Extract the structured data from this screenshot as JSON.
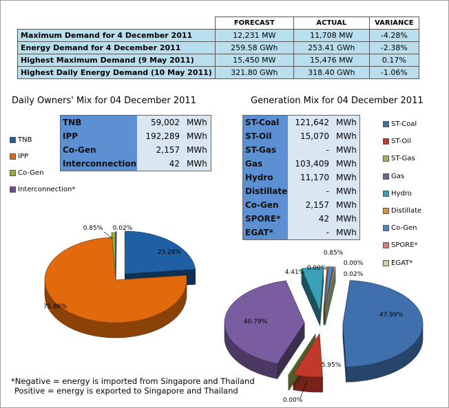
{
  "summary_table": {
    "headers": [
      "FORECAST",
      "ACTUAL",
      "VARIANCE"
    ],
    "rows": [
      {
        "label": "Maximum Demand for 4 December 2011",
        "forecast": "12,231  MW",
        "actual": "11,708  MW",
        "variance": "-4.28%"
      },
      {
        "label": "Energy Demand for 4 December 2011",
        "forecast": "259.58  GWh",
        "actual": "253.41  GWh",
        "variance": "-2.38%"
      },
      {
        "label": "Highest Maximum Demand (9 May 2011)",
        "forecast": "15,450  MW",
        "actual": "15,476  MW",
        "variance": "0.17%"
      },
      {
        "label": "Highest Daily Energy Demand (10 May 2011)",
        "forecast": "321.80  GWh",
        "actual": "318.40  GWh",
        "variance": "-1.06%"
      }
    ]
  },
  "owners_box": {
    "rows": [
      {
        "label": "TNB",
        "value": "59,002",
        "unit": "MWh"
      },
      {
        "label": "IPP",
        "value": "192,289",
        "unit": "MWh"
      },
      {
        "label": "Co-Gen",
        "value": "2,157",
        "unit": "MWh"
      },
      {
        "label": "Interconnection*",
        "value": "42",
        "unit": "MWh"
      }
    ]
  },
  "generation_box": {
    "rows": [
      {
        "label": "ST-Coal",
        "value": "121,642",
        "unit": "MWh"
      },
      {
        "label": "ST-Oil",
        "value": "15,070",
        "unit": "MWh"
      },
      {
        "label": "ST-Gas",
        "value": "-",
        "unit": "MWh"
      },
      {
        "label": "Gas",
        "value": "103,409",
        "unit": "MWh"
      },
      {
        "label": "Hydro",
        "value": "11,170",
        "unit": "MWh"
      },
      {
        "label": "Distillate",
        "value": "-",
        "unit": "MWh"
      },
      {
        "label": "Co-Gen",
        "value": "2,157",
        "unit": "MWh"
      },
      {
        "label": "SPORE*",
        "value": "42",
        "unit": "MWh"
      },
      {
        "label": "EGAT*",
        "value": "-",
        "unit": "MWh"
      }
    ]
  },
  "chart_data": [
    {
      "type": "pie",
      "title": "Daily Owners' Mix for 04 December 2011",
      "legend": "left",
      "slices": [
        {
          "name": "TNB",
          "value": 23.28,
          "label": "23.28%",
          "color": "#1f5fa4"
        },
        {
          "name": "IPP",
          "value": 75.86,
          "label": "75.86%",
          "color": "#e06a0c"
        },
        {
          "name": "Co-Gen",
          "value": 0.85,
          "label": "0.85%",
          "color": "#8fb03a"
        },
        {
          "name": "Interconnection*",
          "value": 0.02,
          "label": "0.02%",
          "color": "#6a4a96"
        }
      ]
    },
    {
      "type": "pie",
      "title": "Generation Mix for 04 December 2011",
      "legend": "right",
      "slices": [
        {
          "name": "ST-Coal",
          "value": 47.99,
          "label": "47.99%",
          "color": "#3f6fad"
        },
        {
          "name": "ST-Oil",
          "value": 5.95,
          "label": "5.95%",
          "color": "#c0392b"
        },
        {
          "name": "ST-Gas",
          "value": 0.0,
          "label": "0.00%",
          "color": "#98b954"
        },
        {
          "name": "Gas",
          "value": 40.79,
          "label": "40.79%",
          "color": "#7a5ca0"
        },
        {
          "name": "Hydro",
          "value": 4.41,
          "label": "4.41%",
          "color": "#3aa0b8"
        },
        {
          "name": "Distillate",
          "value": 0.0,
          "label": "0.00%",
          "color": "#f08c28"
        },
        {
          "name": "Co-Gen",
          "value": 0.85,
          "label": "0.85%",
          "color": "#4f87c5"
        },
        {
          "name": "SPORE*",
          "value": 0.02,
          "label": "0.02%",
          "color": "#e07b6e"
        },
        {
          "name": "EGAT*",
          "value": 0.0,
          "label": "0.00%",
          "color": "#c3d69b"
        }
      ]
    }
  ],
  "footnote": {
    "line1": "*Negative = energy is imported from Singapore and Thailand",
    "line2": "Positive = energy is exported to Singapore and Thailand"
  }
}
